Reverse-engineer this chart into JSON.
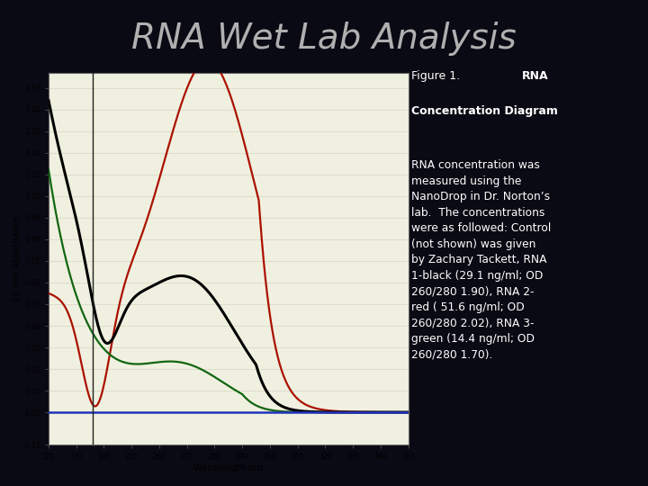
{
  "title": "RNA Wet Lab Analysis",
  "title_color": "#b0b0b0",
  "bg_color": "#0a0a14",
  "chart_facecolor": "#f0f0e0",
  "figure_caption_line1_normal": "Figure 1. ",
  "figure_caption_line1_bold": "RNA",
  "figure_caption_line2_bold": "Concentration Diagram",
  "figure_caption_body": "RNA concentration was\nmeasured using the\nNanoDrop in Dr. Norton’s\nlab.  The concentrations\nwere as followed: Control\n(not shown) was given\nby Zachary Tackett, RNA\n1-black (29.1 ng/ml; OD\n260/280 1.90), RNA 2-\nred ( 51.6 ng/ml; OD\n260/280 2.02), RNA 3-\ngreen (14.4 ng/ml; OD\n260/280 1.70).",
  "xlabel": "Wavelength nm",
  "ylabel": "10 mm Absorbance",
  "xlim": [
    220,
    350
  ],
  "ylim": [
    -0.15,
    1.57
  ],
  "ytick_labels": [
    "-0.15",
    "0.00",
    "0.10",
    "0.20",
    "0.30",
    "0.40",
    "0.50",
    "0.60",
    "0.70",
    "0.80",
    "0.90",
    "1.00",
    "1.10",
    "1.20",
    "1.30",
    "1.40",
    "1.50"
  ],
  "ytick_vals": [
    -0.15,
    0.0,
    0.1,
    0.2,
    0.3,
    0.4,
    0.5,
    0.6,
    0.7,
    0.8,
    0.9,
    1.0,
    1.1,
    1.2,
    1.3,
    1.4,
    1.5
  ],
  "xtick_vals": [
    220,
    230,
    240,
    250,
    260,
    270,
    280,
    290,
    300,
    310,
    320,
    330,
    340,
    350
  ],
  "vline_x": 236,
  "hline_y": 0.0,
  "black_line_color": "#000000",
  "red_line_color": "#aa1100",
  "green_line_color": "#116611",
  "blue_hline_color": "#2233bb",
  "grid_color": "#ddddcc",
  "text_color": "#ffffff"
}
